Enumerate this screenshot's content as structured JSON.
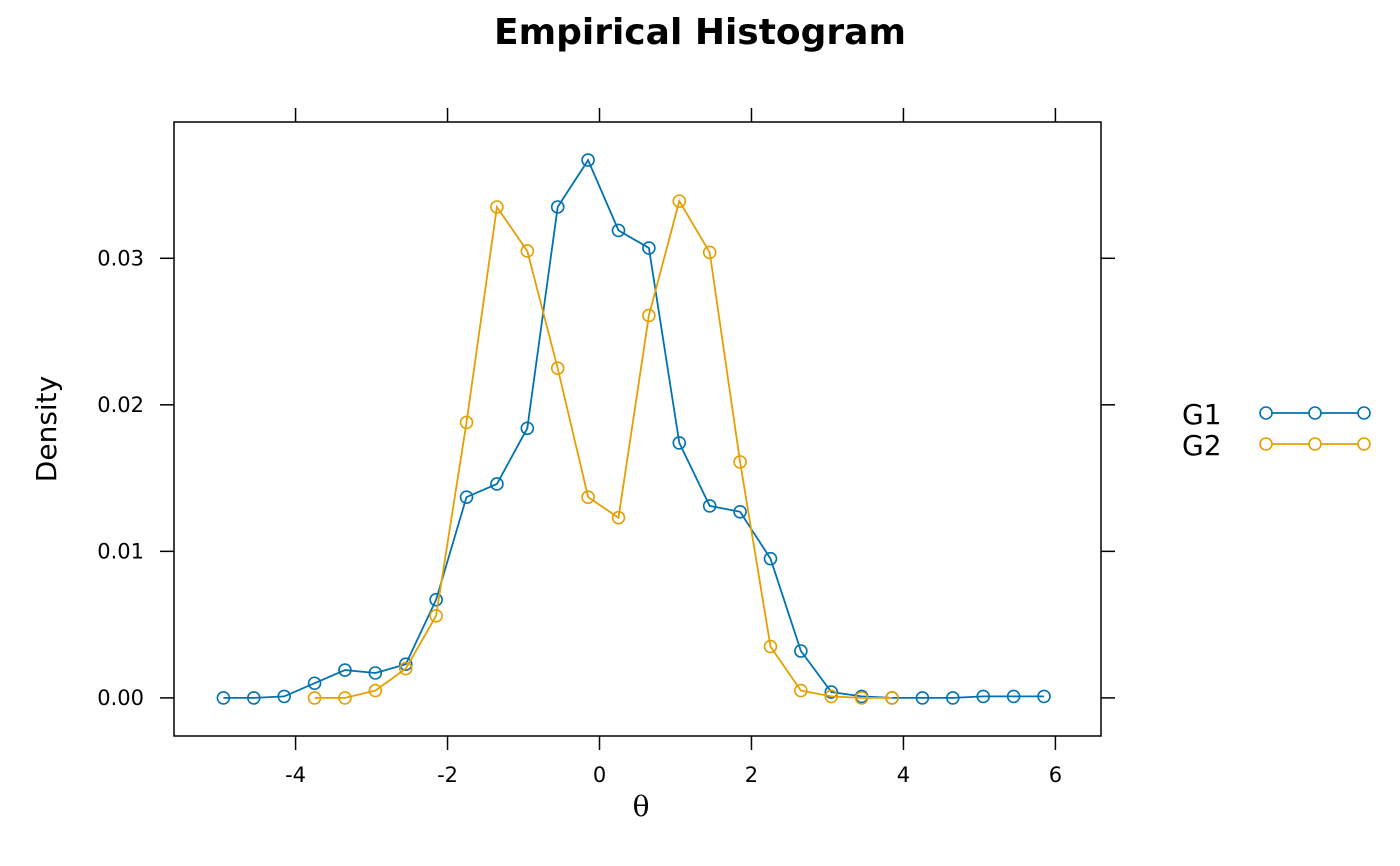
{
  "chart_data": {
    "type": "line",
    "title": "Empirical Histogram",
    "xlabel": "θ",
    "ylabel": "Density",
    "xlim": [
      -5.6,
      6.6
    ],
    "ylim": [
      -0.0026,
      0.0393
    ],
    "xticks": [
      -4,
      -2,
      0,
      2,
      4,
      6
    ],
    "yticks": [
      0.0,
      0.01,
      0.02,
      0.03
    ],
    "xtick_labels": [
      "-4",
      "-2",
      "0",
      "2",
      "4",
      "6"
    ],
    "ytick_labels": [
      "0.00",
      "0.01",
      "0.02",
      "0.03"
    ],
    "grid": false,
    "legend_position": "right",
    "series": [
      {
        "name": "G1",
        "color": "#0072B2",
        "x": [
          -4.95,
          -4.55,
          -4.15,
          -3.75,
          -3.35,
          -2.95,
          -2.55,
          -2.15,
          -1.75,
          -1.35,
          -0.95,
          -0.55,
          -0.15,
          0.25,
          0.65,
          1.05,
          1.45,
          1.85,
          2.25,
          2.65,
          3.05,
          3.45,
          3.85,
          4.25,
          4.65,
          5.05,
          5.45,
          5.85
        ],
        "values": [
          0.0,
          0.0,
          0.0001,
          0.001,
          0.0019,
          0.0017,
          0.0023,
          0.0067,
          0.0137,
          0.0146,
          0.0184,
          0.0335,
          0.0367,
          0.0319,
          0.0307,
          0.0174,
          0.0131,
          0.0127,
          0.0095,
          0.0032,
          0.0004,
          0.0001,
          0.0,
          0.0,
          0.0,
          0.0001,
          0.0001,
          0.0001
        ]
      },
      {
        "name": "G2",
        "color": "#E69F00",
        "x": [
          -3.75,
          -3.35,
          -2.95,
          -2.55,
          -2.15,
          -1.75,
          -1.35,
          -0.95,
          -0.55,
          -0.15,
          0.25,
          0.65,
          1.05,
          1.45,
          1.85,
          2.25,
          2.65,
          3.05,
          3.45,
          3.85
        ],
        "values": [
          0.0,
          0.0,
          0.0005,
          0.002,
          0.0056,
          0.0188,
          0.0335,
          0.0305,
          0.0225,
          0.0137,
          0.0123,
          0.0261,
          0.0339,
          0.0304,
          0.0161,
          0.0035,
          0.0005,
          0.0001,
          0.0,
          0.0
        ]
      }
    ]
  }
}
